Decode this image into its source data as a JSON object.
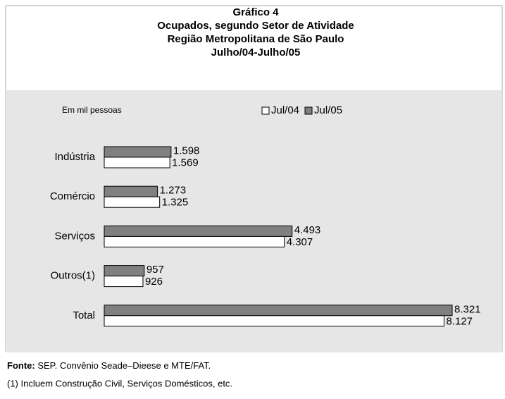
{
  "chart_data": {
    "type": "hbar",
    "title": "Gráfico 4",
    "subtitle": [
      "Ocupados, segundo Setor de Atividade",
      "Região Metropolitana de São Paulo",
      "Julho/04-Julho/05"
    ],
    "unit_label": "Em mil pessoas",
    "categories": [
      "Indústria",
      "Comércio",
      "Serviços",
      "Outros(1)",
      "Total"
    ],
    "series": [
      {
        "name": "Jul/04",
        "color": "#ffffff",
        "values": [
          1569,
          1325,
          4307,
          926,
          8127
        ],
        "value_labels": [
          "1.569",
          "1.325",
          "4.307",
          "926",
          "8.127"
        ]
      },
      {
        "name": "Jul/05",
        "color": "#808080",
        "values": [
          1598,
          1273,
          4493,
          957,
          8321
        ],
        "value_labels": [
          "1.598",
          "1.273",
          "4.493",
          "957",
          "8.321"
        ]
      }
    ],
    "source_label": "Fonte:",
    "source": "SEP. Convênio Seade–Dieese e MTE/FAT.",
    "note": "(1)  Incluem Construção Civil, Serviços Domésticos, etc."
  }
}
